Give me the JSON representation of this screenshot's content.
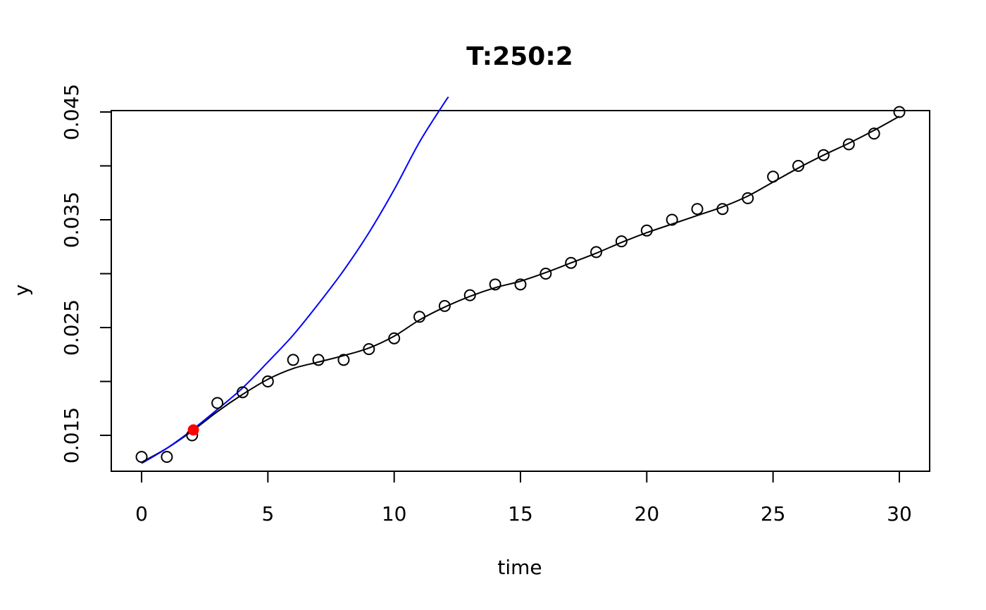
{
  "chart_data": {
    "type": "scatter",
    "title": "T:250:2",
    "xlabel": "time",
    "ylabel": "y",
    "xlim": [
      -1.2,
      31.2
    ],
    "ylim": [
      0.01167,
      0.04513
    ],
    "x_ticks": [
      0,
      5,
      10,
      15,
      20,
      25,
      30
    ],
    "y_ticks": [
      0.015,
      0.02,
      0.025,
      0.03,
      0.035,
      0.04,
      0.045
    ],
    "y_tick_labels": [
      "0.015",
      "",
      "0.025",
      "",
      "0.035",
      "",
      "0.045"
    ],
    "grid": false,
    "points": {
      "x": [
        0,
        1,
        2,
        3,
        4,
        5,
        6,
        7,
        8,
        9,
        10,
        11,
        12,
        13,
        14,
        15,
        16,
        17,
        18,
        19,
        20,
        21,
        22,
        23,
        24,
        25,
        26,
        27,
        28,
        29,
        30
      ],
      "y": [
        0.013,
        0.013,
        0.015,
        0.018,
        0.019,
        0.02,
        0.022,
        0.022,
        0.022,
        0.023,
        0.024,
        0.026,
        0.027,
        0.028,
        0.029,
        0.029,
        0.03,
        0.031,
        0.032,
        0.033,
        0.034,
        0.035,
        0.036,
        0.036,
        0.037,
        0.039,
        0.04,
        0.041,
        0.042,
        0.043,
        0.045
      ],
      "marker": "open-circle",
      "color": "#000000"
    },
    "series": [
      {
        "role": "smoothing-spline",
        "color": "#000000",
        "x": [
          0,
          1,
          2,
          3,
          4,
          5,
          6,
          7,
          8,
          9,
          10,
          11,
          12,
          13,
          14,
          15,
          16,
          17,
          18,
          19,
          20,
          21,
          22,
          23,
          24,
          25,
          26,
          27,
          28,
          29,
          30
        ],
        "y": [
          0.0125,
          0.0138,
          0.0154,
          0.0172,
          0.0188,
          0.0202,
          0.0212,
          0.0218,
          0.0224,
          0.0231,
          0.0242,
          0.0257,
          0.0269,
          0.0279,
          0.0287,
          0.0293,
          0.0301,
          0.031,
          0.0319,
          0.0329,
          0.0338,
          0.0346,
          0.0354,
          0.0362,
          0.0372,
          0.0385,
          0.0398,
          0.041,
          0.0421,
          0.0433,
          0.0446
        ]
      },
      {
        "role": "exponential-fit",
        "color": "#0000ff",
        "x": [
          0,
          1,
          2,
          3,
          4,
          5,
          6,
          7,
          8,
          9,
          10,
          11,
          12,
          12.15
        ],
        "y": [
          0.0124,
          0.0138,
          0.0155,
          0.0174,
          0.0194,
          0.0218,
          0.0243,
          0.0272,
          0.0303,
          0.0338,
          0.0378,
          0.0422,
          0.0459,
          0.04637
        ]
      }
    ],
    "highlight": {
      "x": 2.05,
      "y": 0.0155,
      "color": "#ff0000"
    }
  }
}
